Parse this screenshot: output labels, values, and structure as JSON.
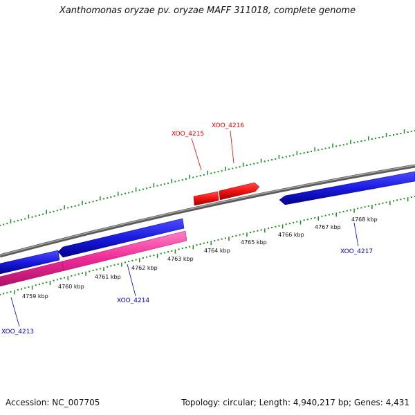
{
  "title": "Xanthomonas oryzae pv. oryzae MAFF 311018, complete genome",
  "footer": {
    "accession_label": "Accession:",
    "accession": "NC_007705",
    "topology_label": "Topology:",
    "topology": "circular",
    "length_label": "Length:",
    "length": "4,940,217 bp",
    "genes_label": "Genes:",
    "genes": "4,431"
  },
  "scale": {
    "unit": "kbp",
    "ticks": [
      "4759 kbp",
      "4760 kbp",
      "4761 kbp",
      "4762 kbp",
      "4763 kbp",
      "4764 kbp",
      "4765 kbp",
      "4766 kbp",
      "4767 kbp",
      "4768 kbp"
    ]
  },
  "genes": [
    {
      "name": "XOO_4213",
      "strand": "reverse",
      "color": "#0000bb"
    },
    {
      "name": "XOO_4214",
      "strand": "reverse",
      "color": "#0000bb"
    },
    {
      "name": "XOO_4215",
      "strand": "forward",
      "color": "#dd0000"
    },
    {
      "name": "XOO_4216",
      "strand": "forward",
      "color": "#dd0000"
    },
    {
      "name": "XOO_4217",
      "strand": "reverse",
      "color": "#0000bb"
    }
  ],
  "colors": {
    "backbone": "#808080",
    "forward_gene": "#ee1111",
    "reverse_gene": "#1a1ae0",
    "rna_feature": "#ee2a96",
    "tick_marks": "#1a8a1a",
    "gene_label_forward": "#dd0000",
    "gene_label_reverse": "#0000bb"
  }
}
